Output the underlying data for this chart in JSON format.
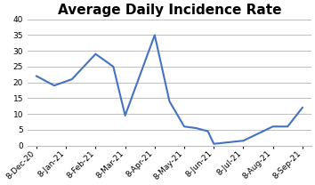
{
  "title": "Average Daily Incidence Rate",
  "x_labels": [
    "8-Dec-20",
    "8-Jan-21",
    "8-Feb-21",
    "8-Mar-21",
    "8-Apr-21",
    "8-May-21",
    "8-Jun-21",
    "8-Jul-21",
    "8-Aug-21",
    "8-Sep-21"
  ],
  "y_values": [
    22,
    19,
    21,
    29,
    25,
    9.5,
    35,
    14,
    6,
    5.5,
    4.5,
    0.5,
    1,
    1.5,
    6,
    6,
    12
  ],
  "x_indices": [
    0,
    0.6,
    1.2,
    2,
    2.6,
    3,
    4,
    4.5,
    5,
    5.4,
    5.8,
    6,
    6.5,
    7,
    8,
    8.5,
    9
  ],
  "line_color": "#4472C4",
  "line_width": 1.5,
  "ylim": [
    0,
    40
  ],
  "yticks": [
    0,
    5,
    10,
    15,
    20,
    25,
    30,
    35,
    40
  ],
  "grid_color": "#BEBEBE",
  "background_color": "#FFFFFF",
  "title_fontsize": 11,
  "tick_fontsize": 6.5,
  "xtick_positions": [
    0,
    1,
    2,
    3,
    4,
    5,
    6,
    7,
    8,
    9
  ]
}
